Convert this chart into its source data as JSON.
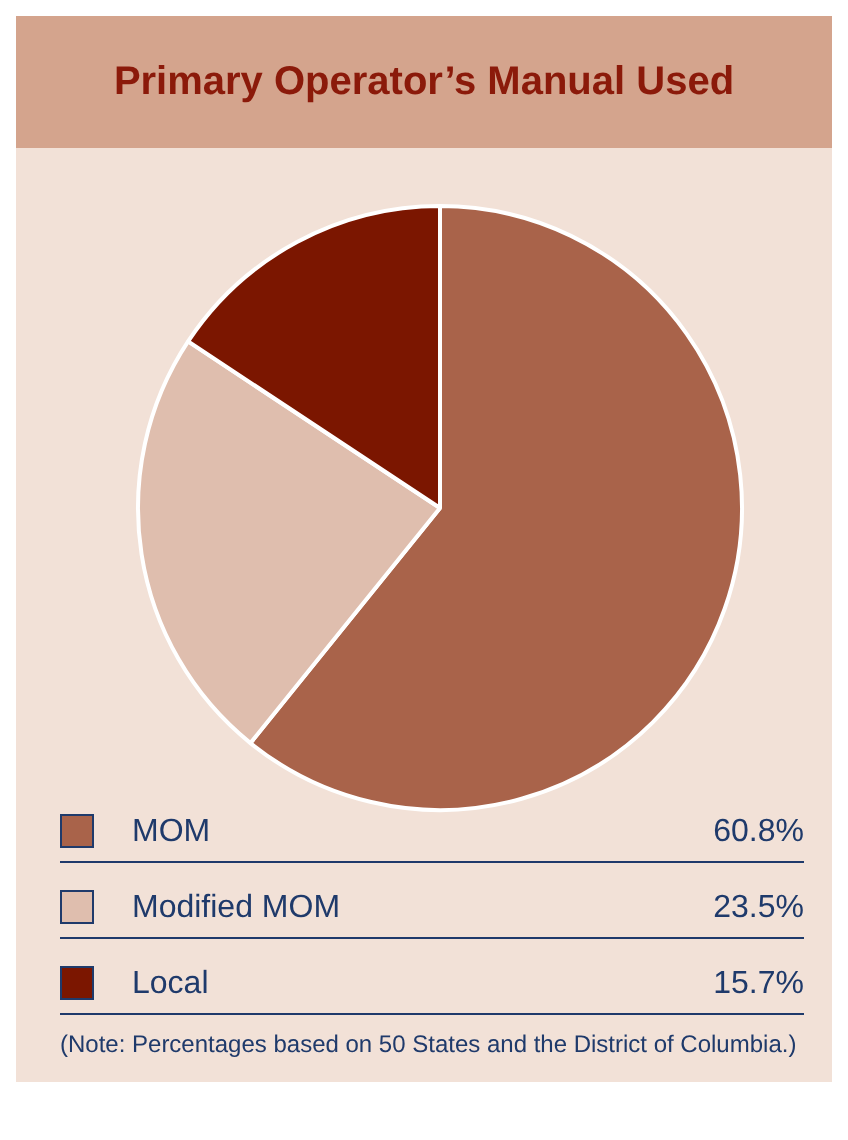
{
  "chart_data": {
    "type": "pie",
    "title": "Primary Operator’s Manual Used",
    "categories": [
      "MOM",
      "Modified MOM",
      "Local"
    ],
    "values": [
      60.8,
      23.5,
      15.7
    ],
    "colors": [
      "#a9634a",
      "#dfbeae",
      "#7b1600"
    ],
    "value_labels": [
      "60.8%",
      "23.5%",
      "15.7%"
    ],
    "legend": "bottom",
    "annotations": [
      "(Note: Percentages based on 50 States and the District of Columbia.)"
    ]
  }
}
